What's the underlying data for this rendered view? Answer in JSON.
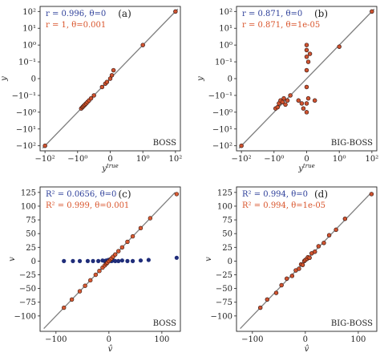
{
  "chart_data": [
    {
      "type": "scatter",
      "panel_label": "(a)",
      "corner_label": "BOSS",
      "xlabel": "y^true",
      "ylabel": "y",
      "scale": "symlog",
      "xlim": [
        -200,
        200
      ],
      "ylim": [
        -200,
        200
      ],
      "xticks": [
        "−10²",
        "−10⁰",
        "0",
        "10⁰",
        "10²"
      ],
      "yticks": [
        "10²",
        "10¹",
        "10⁰",
        "10⁻¹",
        "0",
        "−10⁻¹",
        "−10⁰",
        "−10¹",
        "−10²"
      ],
      "legend_position": "top-left",
      "legend": [
        {
          "text": "r = 0.996, θ=0",
          "color": "#2c3e99"
        },
        {
          "text": "r = 1, θ=0.001",
          "color": "#d9542b"
        }
      ],
      "series": [
        {
          "name": "θ=0",
          "marker_color": "#223a8a",
          "x": [
            -100,
            -0.6,
            -0.5,
            -0.45,
            -0.4,
            -0.35,
            -0.3,
            -0.25,
            -0.2,
            -0.15,
            -0.1,
            -0.05,
            -0.03,
            -0.02,
            0.0,
            0.01,
            0.02,
            1.0,
            100
          ],
          "y": [
            -100,
            -0.6,
            -0.5,
            -0.45,
            -0.4,
            -0.35,
            -0.3,
            -0.25,
            -0.2,
            -0.15,
            -0.1,
            -0.05,
            -0.03,
            -0.02,
            0.0,
            0.02,
            0.05,
            1.0,
            100
          ]
        },
        {
          "name": "θ=0.001",
          "marker_color": "#d9542b",
          "x": [
            -100,
            -0.6,
            -0.5,
            -0.45,
            -0.4,
            -0.35,
            -0.3,
            -0.25,
            -0.2,
            -0.15,
            -0.1,
            -0.05,
            -0.03,
            -0.02,
            0.0,
            0.01,
            0.02,
            1.0,
            100
          ],
          "y": [
            -100,
            -0.6,
            -0.5,
            -0.45,
            -0.4,
            -0.35,
            -0.3,
            -0.25,
            -0.2,
            -0.15,
            -0.1,
            -0.05,
            -0.03,
            -0.02,
            0.0,
            0.02,
            0.05,
            1.0,
            100
          ]
        }
      ]
    },
    {
      "type": "scatter",
      "panel_label": "(b)",
      "corner_label": "BIG-BOSS",
      "xlabel": "y^true",
      "ylabel": "y",
      "scale": "symlog",
      "xlim": [
        -200,
        200
      ],
      "ylim": [
        -200,
        200
      ],
      "xticks": [
        "−10²",
        "−10⁰",
        "0",
        "10⁰",
        "10²"
      ],
      "yticks": [
        "10²",
        "10¹",
        "10⁰",
        "10⁻¹",
        "0",
        "−10⁻¹",
        "−10⁰",
        "−10¹",
        "−10²"
      ],
      "legend_position": "top-left",
      "legend": [
        {
          "text": "r = 0.871, θ=0",
          "color": "#2c3e99"
        },
        {
          "text": "r = 0.871, θ=1e-05",
          "color": "#d9542b"
        }
      ],
      "series": [
        {
          "name": "θ=0",
          "marker_color": "#223a8a",
          "x": [
            -100,
            -0.8,
            -0.6,
            -0.5,
            -0.4,
            -0.3,
            -0.25,
            -0.2,
            -0.15,
            -0.1,
            -0.05,
            -0.03,
            -0.02,
            0.0,
            0.0,
            0.0,
            0.0,
            0.0,
            0.0,
            0.0,
            0.01,
            0.01,
            0.02,
            0.05,
            1.0,
            100
          ],
          "y": [
            -100,
            -0.6,
            -0.5,
            -0.3,
            -0.2,
            -0.25,
            -0.15,
            -0.35,
            -0.2,
            -0.1,
            -0.2,
            -0.3,
            -0.6,
            1.0,
            0.5,
            0.2,
            0.05,
            -0.05,
            -0.3,
            -1.0,
            0.1,
            -0.15,
            0.3,
            -0.2,
            0.8,
            100
          ]
        },
        {
          "name": "θ=1e-05",
          "marker_color": "#d9542b",
          "x": [
            -100,
            -0.8,
            -0.6,
            -0.5,
            -0.4,
            -0.3,
            -0.25,
            -0.2,
            -0.15,
            -0.1,
            -0.05,
            -0.03,
            -0.02,
            0.0,
            0.0,
            0.0,
            0.0,
            0.0,
            0.0,
            0.0,
            0.01,
            0.01,
            0.02,
            0.05,
            1.0,
            100
          ],
          "y": [
            -100,
            -0.6,
            -0.5,
            -0.3,
            -0.2,
            -0.25,
            -0.15,
            -0.35,
            -0.2,
            -0.1,
            -0.2,
            -0.3,
            -0.6,
            1.0,
            0.5,
            0.2,
            0.05,
            -0.05,
            -0.3,
            -1.0,
            0.1,
            -0.15,
            0.3,
            -0.2,
            0.8,
            100
          ]
        }
      ]
    },
    {
      "type": "scatter",
      "panel_label": "(c)",
      "corner_label": "BOSS",
      "xlabel": "v̂",
      "ylabel": "v",
      "scale": "linear",
      "xlim": [
        -130,
        135
      ],
      "ylim": [
        -128,
        135
      ],
      "xticks": [
        -100,
        0,
        100
      ],
      "yticks": [
        125,
        100,
        75,
        50,
        25,
        0,
        -25,
        -50,
        -75,
        -100
      ],
      "legend_position": "top-left",
      "legend": [
        {
          "text": "R² = 0.0656, θ=0",
          "color": "#2c3e99"
        },
        {
          "text": "R² = 0.999, θ=0.001",
          "color": "#d9542b"
        }
      ],
      "series": [
        {
          "name": "θ=0",
          "marker_color": "#1f2d7a",
          "x": [
            -85,
            -68,
            -55,
            -40,
            -30,
            -20,
            -12,
            -8,
            -5,
            -3,
            -1,
            0,
            1,
            3,
            5,
            8,
            12,
            18,
            25,
            35,
            45,
            60,
            75,
            128
          ],
          "y": [
            0,
            0,
            0,
            0,
            0,
            0,
            1,
            0,
            1,
            0,
            2,
            1,
            0,
            1,
            0,
            1,
            0,
            0,
            1,
            0,
            0,
            1,
            2,
            6
          ]
        },
        {
          "name": "θ=0.001",
          "marker_color": "#d9542b",
          "x": [
            -85,
            -70,
            -55,
            -45,
            -35,
            -25,
            -18,
            -12,
            -8,
            -5,
            -3,
            0,
            3,
            5,
            8,
            12,
            18,
            25,
            35,
            45,
            60,
            78,
            128
          ],
          "y": [
            -85,
            -70,
            -55,
            -45,
            -35,
            -25,
            -18,
            -12,
            -8,
            -5,
            -3,
            0,
            3,
            5,
            8,
            12,
            18,
            25,
            35,
            45,
            60,
            78,
            122
          ]
        }
      ]
    },
    {
      "type": "scatter",
      "panel_label": "(d)",
      "corner_label": "BIG-BOSS",
      "xlabel": "v̂",
      "ylabel": "v",
      "scale": "linear",
      "xlim": [
        -130,
        135
      ],
      "ylim": [
        -128,
        135
      ],
      "xticks": [
        -100,
        0,
        100
      ],
      "yticks": [
        125,
        100,
        75,
        50,
        25,
        0,
        -25,
        -50,
        -75,
        -100
      ],
      "legend_position": "top-left",
      "legend": [
        {
          "text": "R² = 0.994, θ=0",
          "color": "#2c3e99"
        },
        {
          "text": "R² = 0.994, θ=1e-05",
          "color": "#d9542b"
        }
      ],
      "series": [
        {
          "name": "θ=0",
          "marker_color": "#223a8a",
          "x": [
            -85,
            -72,
            -55,
            -45,
            -35,
            -25,
            -18,
            -12,
            -8,
            -5,
            -2,
            0,
            3,
            5,
            8,
            12,
            18,
            25,
            35,
            45,
            58,
            75,
            125
          ],
          "y": [
            -85,
            -70,
            -58,
            -44,
            -32,
            -27,
            -17,
            -14,
            -6,
            -7,
            0,
            2,
            4,
            7,
            6,
            14,
            17,
            27,
            33,
            47,
            57,
            77,
            122
          ]
        },
        {
          "name": "θ=1e-05",
          "marker_color": "#d9542b",
          "x": [
            -85,
            -72,
            -55,
            -45,
            -35,
            -25,
            -18,
            -12,
            -8,
            -5,
            -2,
            0,
            3,
            5,
            8,
            12,
            18,
            25,
            35,
            45,
            58,
            75,
            125
          ],
          "y": [
            -85,
            -70,
            -58,
            -44,
            -32,
            -27,
            -17,
            -14,
            -6,
            -7,
            0,
            2,
            4,
            7,
            6,
            14,
            17,
            27,
            33,
            47,
            57,
            77,
            122
          ]
        }
      ]
    }
  ]
}
